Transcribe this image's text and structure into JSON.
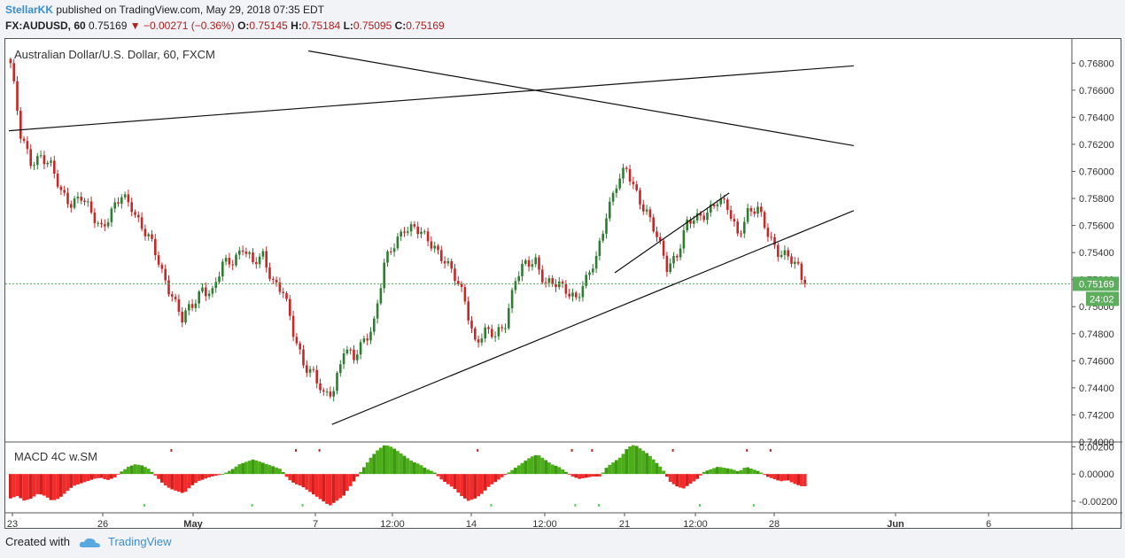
{
  "header": {
    "user": "StellarKK",
    "published": "published on TradingView.com, May 29, 2018 07:35 EDT",
    "symbol": "FX:AUDUSD, 60",
    "last": "0.75169",
    "change": "▼ −0.00271 (−0.36%)",
    "o_label": "O:",
    "o": "0.75145",
    "h_label": "H:",
    "h": "0.75184",
    "l_label": "L:",
    "l": "0.75095",
    "c_label": "C:",
    "c": "0.75169"
  },
  "footer": {
    "created": "Created with",
    "brand": "TradingView"
  },
  "colors": {
    "up": "#2e7d32",
    "down": "#c62828",
    "macd_pos": "#4caf1a",
    "macd_neg": "#f32b2b",
    "price_label": "#5cae5c",
    "accent": "#3b8ed3"
  },
  "chart_data": {
    "type": "candlestick",
    "title": "Australian Dollar/U.S. Dollar, 60, FXCM",
    "price_axis": {
      "ticks": [
        "0.76800",
        "0.76600",
        "0.76400",
        "0.76200",
        "0.76000",
        "0.75800",
        "0.75600",
        "0.75400",
        "0.75200",
        "0.75000",
        "0.74800",
        "0.74600",
        "0.74400",
        "0.74200",
        "0.74000"
      ],
      "ylim": [
        0.74,
        0.769
      ]
    },
    "last_price": "0.75169",
    "countdown": "24:02",
    "x_labels": [
      "23",
      "26",
      "May",
      "7",
      "12:00",
      "14",
      "12:00",
      "21",
      "12:00",
      "28",
      "Jun",
      "6"
    ],
    "price_path": [
      [
        0,
        0.768
      ],
      [
        3,
        0.7625
      ],
      [
        6,
        0.7608
      ],
      [
        9,
        0.7612
      ],
      [
        12,
        0.7602
      ],
      [
        15,
        0.7585
      ],
      [
        18,
        0.7578
      ],
      [
        21,
        0.758
      ],
      [
        24,
        0.7568
      ],
      [
        27,
        0.756
      ],
      [
        30,
        0.757
      ],
      [
        33,
        0.758
      ],
      [
        36,
        0.7575
      ],
      [
        39,
        0.756
      ],
      [
        42,
        0.7545
      ],
      [
        45,
        0.7525
      ],
      [
        48,
        0.751
      ],
      [
        51,
        0.749
      ],
      [
        54,
        0.75
      ],
      [
        57,
        0.7515
      ],
      [
        60,
        0.751
      ],
      [
        63,
        0.753
      ],
      [
        66,
        0.7535
      ],
      [
        69,
        0.7545
      ],
      [
        72,
        0.753
      ],
      [
        75,
        0.7538
      ],
      [
        78,
        0.752
      ],
      [
        81,
        0.751
      ],
      [
        84,
        0.748
      ],
      [
        87,
        0.746
      ],
      [
        90,
        0.745
      ],
      [
        93,
        0.7432
      ],
      [
        96,
        0.744
      ],
      [
        99,
        0.747
      ],
      [
        102,
        0.746
      ],
      [
        105,
        0.7475
      ],
      [
        108,
        0.749
      ],
      [
        111,
        0.753
      ],
      [
        114,
        0.7545
      ],
      [
        117,
        0.756
      ],
      [
        120,
        0.7558
      ],
      [
        123,
        0.755
      ],
      [
        126,
        0.7545
      ],
      [
        129,
        0.7535
      ],
      [
        132,
        0.752
      ],
      [
        135,
        0.7505
      ],
      [
        138,
        0.7475
      ],
      [
        141,
        0.748
      ],
      [
        144,
        0.7478
      ],
      [
        147,
        0.749
      ],
      [
        150,
        0.752
      ],
      [
        153,
        0.753
      ],
      [
        156,
        0.7535
      ],
      [
        159,
        0.7518
      ],
      [
        162,
        0.7515
      ],
      [
        165,
        0.7513
      ],
      [
        168,
        0.7508
      ],
      [
        171,
        0.7518
      ],
      [
        174,
        0.7535
      ],
      [
        177,
        0.757
      ],
      [
        180,
        0.759
      ],
      [
        183,
        0.76
      ],
      [
        186,
        0.7585
      ],
      [
        189,
        0.757
      ],
      [
        192,
        0.755
      ],
      [
        195,
        0.753
      ],
      [
        198,
        0.754
      ],
      [
        201,
        0.756
      ],
      [
        204,
        0.7565
      ],
      [
        207,
        0.7572
      ],
      [
        210,
        0.7578
      ],
      [
        213,
        0.7572
      ],
      [
        216,
        0.7555
      ],
      [
        219,
        0.757
      ],
      [
        222,
        0.757
      ],
      [
        225,
        0.7555
      ],
      [
        228,
        0.7542
      ],
      [
        231,
        0.7535
      ],
      [
        234,
        0.7528
      ],
      [
        236,
        0.7517
      ]
    ],
    "macd_hist": [
      -20,
      -18,
      -22,
      -20,
      -16,
      -18,
      -22,
      -20,
      -15,
      -10,
      -8,
      -6,
      -4,
      -3,
      -5,
      -3,
      2,
      6,
      8,
      7,
      4,
      -2,
      -8,
      -12,
      -14,
      -16,
      -10,
      -6,
      -4,
      -2,
      -1,
      1,
      4,
      8,
      10,
      12,
      10,
      8,
      6,
      4,
      -4,
      -8,
      -10,
      -14,
      -18,
      -22,
      -26,
      -22,
      -18,
      -10,
      -2,
      6,
      14,
      20,
      24,
      22,
      18,
      14,
      10,
      8,
      4,
      2,
      -4,
      -8,
      -12,
      -18,
      -22,
      -20,
      -16,
      -10,
      -6,
      -2,
      2,
      6,
      10,
      14,
      16,
      12,
      8,
      6,
      2,
      -2,
      -4,
      -3,
      -2,
      -2,
      6,
      10,
      14,
      22,
      24,
      20,
      16,
      10,
      4,
      -6,
      -10,
      -12,
      -8,
      -4,
      2,
      4,
      6,
      5,
      4,
      2,
      6,
      4,
      2,
      -2,
      -4,
      -6,
      -5,
      -8,
      -10
    ],
    "macd_panel": {
      "title": "MACD 4C w.SM",
      "ticks": [
        "0.00200",
        "0.00000",
        "-0.00200"
      ],
      "ylim": [
        -0.0026,
        0.0021
      ]
    },
    "trendlines": [
      {
        "from": [
          0,
          0.763
        ],
        "to": [
          251,
          0.7678
        ]
      },
      {
        "from": [
          89,
          0.7689
        ],
        "to": [
          251,
          0.7619
        ]
      },
      {
        "from": [
          96,
          0.7413
        ],
        "to": [
          251,
          0.7571
        ]
      },
      {
        "from": [
          180,
          0.7525
        ],
        "to": [
          214,
          0.7584
        ]
      }
    ]
  }
}
